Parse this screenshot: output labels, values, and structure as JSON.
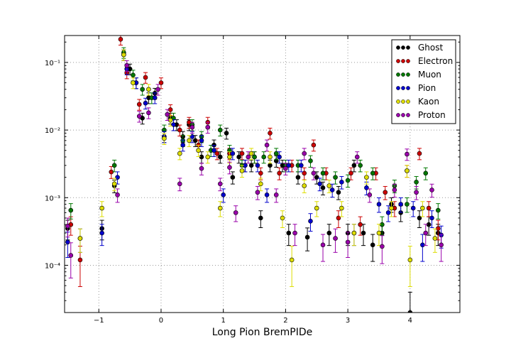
{
  "chart_data": {
    "type": "scatter",
    "title": "",
    "xlabel": "Long Pion BremPIDe",
    "ylabel": "",
    "xlim": [
      -1.55,
      4.8
    ],
    "ylim": [
      2e-05,
      0.25
    ],
    "yscale": "log",
    "grid": true,
    "legend_position": "top-right",
    "x_ticks": [
      {
        "value": -1,
        "label": "−1"
      },
      {
        "value": 0,
        "label": "0"
      },
      {
        "value": 1,
        "label": "1"
      },
      {
        "value": 2,
        "label": "2"
      },
      {
        "value": 3,
        "label": "3"
      },
      {
        "value": 4,
        "label": "4"
      }
    ],
    "y_ticks": [
      {
        "value": 0.1,
        "label": "10⁻¹"
      },
      {
        "value": 0.01,
        "label": "10⁻²"
      },
      {
        "value": 0.001,
        "label": "10⁻³"
      },
      {
        "value": 0.0001,
        "label": "10⁻⁴"
      }
    ],
    "series": [
      {
        "name": "Ghost",
        "color": "#000000",
        "x": [
          -1.5,
          -0.95,
          -0.75,
          -0.6,
          -0.5,
          -0.4,
          -0.3,
          -0.2,
          -0.1,
          0.05,
          0.15,
          0.25,
          0.35,
          0.45,
          0.55,
          0.65,
          0.85,
          0.95,
          1.05,
          1.15,
          1.25,
          1.35,
          1.45,
          1.6,
          1.75,
          1.85,
          1.95,
          2.05,
          2.2,
          2.35,
          2.5,
          2.6,
          2.7,
          2.85,
          3.0,
          3.1,
          3.25,
          3.4,
          3.55,
          3.7,
          3.85,
          4.0,
          4.15,
          4.3,
          4.45
        ],
        "y": [
          0.00035,
          0.00035,
          0.0015,
          0.13,
          0.08,
          0.05,
          0.015,
          0.03,
          0.035,
          0.008,
          0.015,
          0.012,
          0.008,
          0.012,
          0.007,
          0.004,
          0.006,
          0.004,
          0.009,
          0.002,
          0.004,
          0.003,
          0.003,
          0.0005,
          0.003,
          0.0035,
          0.003,
          0.0003,
          0.002,
          0.00026,
          0.002,
          0.0014,
          0.0003,
          0.0012,
          0.0003,
          0.003,
          0.0003,
          0.0002,
          0.0003,
          0.0008,
          0.0006,
          2e-05,
          0.0005,
          0.0004,
          0.0003
        ]
      },
      {
        "name": "Electron",
        "color": "#cc0000",
        "x": [
          -1.45,
          -1.3,
          -0.8,
          -0.65,
          -0.55,
          -0.35,
          -0.25,
          0.0,
          0.15,
          0.3,
          0.45,
          0.6,
          0.75,
          0.9,
          1.1,
          1.3,
          1.5,
          1.6,
          1.75,
          1.9,
          2.1,
          2.3,
          2.45,
          2.65,
          2.85,
          3.05,
          3.2,
          3.45,
          3.6,
          3.75,
          3.95,
          4.15,
          4.3,
          4.45
        ],
        "y": [
          0.0004,
          0.00012,
          0.0024,
          0.22,
          0.07,
          0.024,
          0.06,
          0.05,
          0.02,
          0.01,
          0.013,
          0.006,
          0.013,
          0.0045,
          0.0045,
          0.0045,
          0.004,
          0.0023,
          0.009,
          0.0023,
          0.003,
          0.0023,
          0.006,
          0.0023,
          0.0005,
          0.0023,
          0.0004,
          0.0023,
          0.0012,
          0.0007,
          0.0025,
          0.0045,
          0.0007,
          0.00035
        ]
      },
      {
        "name": "Muon",
        "color": "#007700",
        "x": [
          -1.45,
          -0.75,
          -0.6,
          -0.45,
          -0.3,
          -0.15,
          0.05,
          0.2,
          0.35,
          0.5,
          0.65,
          0.8,
          0.95,
          1.1,
          1.3,
          1.5,
          1.65,
          1.85,
          2.0,
          2.2,
          2.4,
          2.6,
          2.8,
          3.0,
          3.2,
          3.4,
          3.55,
          3.75,
          3.95,
          4.1,
          4.25,
          4.45
        ],
        "y": [
          0.00065,
          0.003,
          0.14,
          0.065,
          0.04,
          0.03,
          0.01,
          0.015,
          0.007,
          0.012,
          0.008,
          0.005,
          0.01,
          0.005,
          0.003,
          0.004,
          0.004,
          0.0045,
          0.003,
          0.003,
          0.0035,
          0.0023,
          0.002,
          0.0018,
          0.003,
          0.0023,
          0.0004,
          0.0015,
          0.0008,
          0.0017,
          0.0023,
          0.00065
        ]
      },
      {
        "name": "Pion",
        "color": "#0000cc",
        "x": [
          -1.5,
          -1.3,
          -0.95,
          -0.7,
          -0.55,
          -0.4,
          -0.25,
          -0.1,
          0.05,
          0.2,
          0.35,
          0.5,
          0.65,
          0.85,
          1.0,
          1.15,
          1.35,
          1.55,
          1.7,
          1.9,
          2.05,
          2.25,
          2.4,
          2.55,
          2.75,
          2.9,
          3.1,
          3.3,
          3.5,
          3.65,
          3.85,
          4.05,
          4.2,
          4.35,
          4.5
        ],
        "y": [
          0.00022,
          0.00025,
          0.0003,
          0.002,
          0.08,
          0.05,
          0.025,
          0.03,
          0.008,
          0.012,
          0.006,
          0.008,
          0.007,
          0.005,
          0.0011,
          0.0045,
          0.003,
          0.003,
          0.0011,
          0.004,
          0.003,
          0.003,
          0.00045,
          0.0016,
          0.0013,
          0.0017,
          0.0003,
          0.0014,
          0.0008,
          0.0006,
          0.0008,
          0.0007,
          0.0002,
          0.0005,
          0.00028
        ]
      },
      {
        "name": "Kaon",
        "color": "#dddd00",
        "x": [
          -1.3,
          -0.95,
          -0.75,
          -0.6,
          -0.45,
          -0.2,
          0.05,
          0.15,
          0.3,
          0.45,
          0.6,
          0.75,
          0.95,
          1.1,
          1.3,
          1.45,
          1.6,
          1.75,
          1.95,
          2.1,
          2.3,
          2.5,
          2.7,
          2.9,
          3.1,
          3.3,
          3.5,
          3.7,
          3.95,
          4.0,
          4.2,
          4.4
        ],
        "y": [
          0.00025,
          0.0007,
          0.0016,
          0.13,
          0.05,
          0.04,
          0.0075,
          0.014,
          0.0045,
          0.007,
          0.005,
          0.004,
          0.0007,
          0.004,
          0.0025,
          0.0045,
          0.0016,
          0.004,
          0.0005,
          0.00012,
          0.0015,
          0.0007,
          0.0015,
          0.0007,
          0.0003,
          0.002,
          0.0003,
          0.0007,
          0.0025,
          0.00012,
          0.0007,
          0.00025
        ]
      },
      {
        "name": "Proton",
        "color": "#9900aa",
        "x": [
          -1.5,
          -1.45,
          -0.7,
          -0.55,
          -0.35,
          -0.2,
          -0.05,
          0.1,
          0.3,
          0.5,
          0.65,
          0.75,
          0.95,
          1.1,
          1.2,
          1.4,
          1.55,
          1.7,
          1.85,
          2.0,
          2.15,
          2.3,
          2.45,
          2.6,
          2.8,
          3.0,
          3.15,
          3.35,
          3.55,
          3.75,
          3.95,
          4.1,
          4.25,
          4.35,
          4.5
        ],
        "y": [
          0.00038,
          0.00014,
          0.0011,
          0.09,
          0.016,
          0.018,
          0.04,
          0.017,
          0.0016,
          0.011,
          0.0027,
          0.011,
          0.0016,
          0.0028,
          0.0006,
          0.004,
          0.0012,
          0.006,
          0.0011,
          0.0027,
          0.0003,
          0.0045,
          0.0023,
          0.0002,
          0.00025,
          0.00022,
          0.004,
          0.0011,
          0.00019,
          0.0013,
          0.0044,
          0.0012,
          0.0003,
          0.0013,
          0.0002
        ]
      }
    ]
  }
}
